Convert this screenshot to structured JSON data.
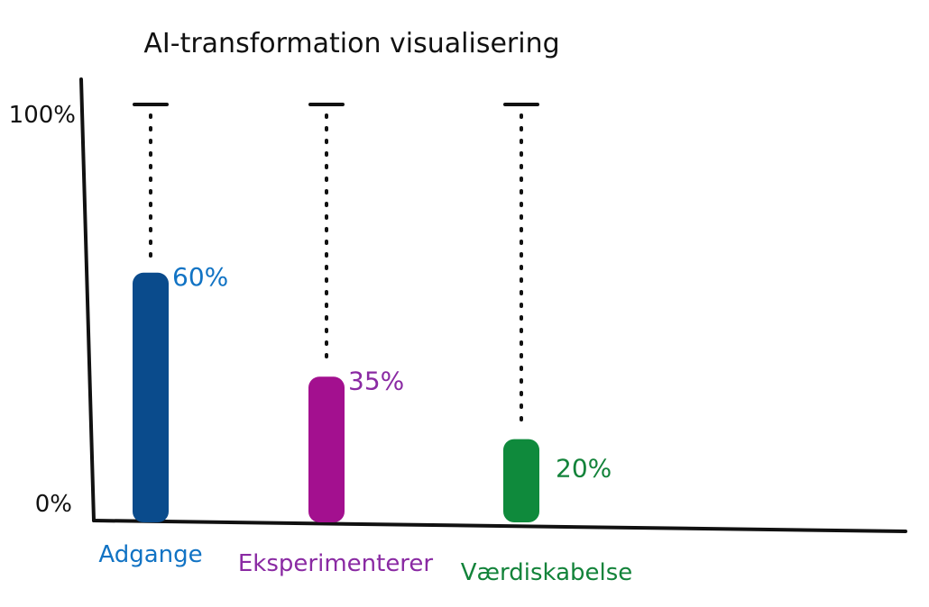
{
  "chart_data": {
    "type": "bar",
    "title": "AI-transformation visualisering",
    "categories": [
      "Adgange",
      "Eksperimenterer",
      "Værdiskabelse"
    ],
    "values": [
      60,
      35,
      20
    ],
    "value_labels": [
      "60%",
      "35%",
      "20%"
    ],
    "colors": [
      "#0a4b8c",
      "#a3108f",
      "#0f8a3c"
    ],
    "label_colors": [
      "#1173c4",
      "#8a2aa3",
      "#13833a"
    ],
    "ylim": [
      0,
      100
    ],
    "yticks": [
      "0%",
      "100%"
    ],
    "xlabel": "",
    "ylabel": "",
    "grid": false,
    "target_markers": true,
    "style": "hand-drawn"
  }
}
